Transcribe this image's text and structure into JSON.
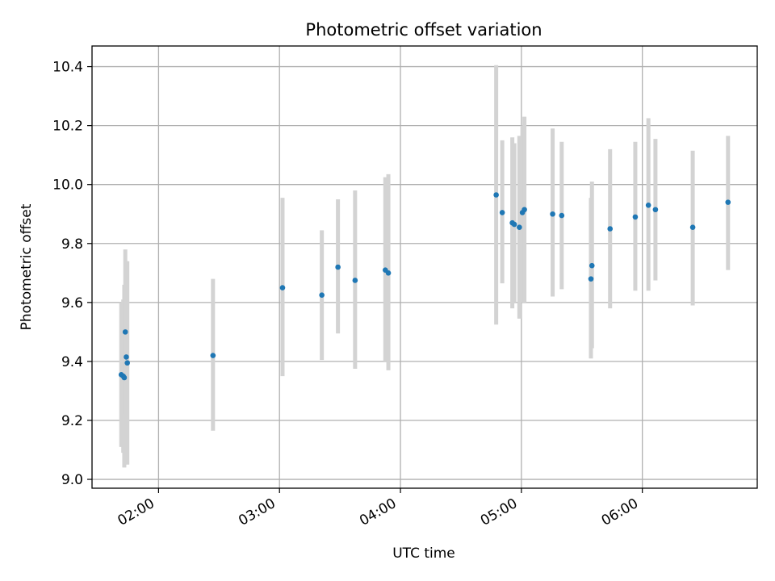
{
  "chart_data": {
    "type": "scatter",
    "title": "Photometric offset variation",
    "xlabel": "UTC time",
    "ylabel": "Photometric offset",
    "x_unit": "UTC time (HH:MM)",
    "xlim": [
      "01:27",
      "06:57"
    ],
    "ylim": [
      8.97,
      10.47
    ],
    "x_ticks": [
      "02:00",
      "03:00",
      "04:00",
      "05:00",
      "06:00"
    ],
    "y_ticks": [
      9.0,
      9.2,
      9.4,
      9.6,
      9.8,
      10.0,
      10.2,
      10.4
    ],
    "y_tick_labels": [
      "9.0",
      "9.2",
      "9.4",
      "9.6",
      "9.8",
      "10.0",
      "10.2",
      "10.4"
    ],
    "grid": true,
    "marker_color": "#1f77b4",
    "errorbar_color": "#d3d3d3",
    "series": [
      {
        "points": [
          {
            "x": "01:41:30",
            "y": 9.355,
            "low": 9.11,
            "high": 9.6
          },
          {
            "x": "01:42:30",
            "y": 9.35,
            "low": 9.09,
            "high": 9.61
          },
          {
            "x": "01:43:00",
            "y": 9.345,
            "low": 9.04,
            "high": 9.66
          },
          {
            "x": "01:43:30",
            "y": 9.5,
            "low": 9.22,
            "high": 9.78
          },
          {
            "x": "01:44:00",
            "y": 9.415,
            "low": 9.09,
            "high": 9.74
          },
          {
            "x": "01:44:30",
            "y": 9.395,
            "low": 9.05,
            "high": 9.74
          },
          {
            "x": "02:27:00",
            "y": 9.42,
            "low": 9.165,
            "high": 9.68
          },
          {
            "x": "03:01:30",
            "y": 9.65,
            "low": 9.35,
            "high": 9.955
          },
          {
            "x": "03:21:00",
            "y": 9.625,
            "low": 9.405,
            "high": 9.845
          },
          {
            "x": "03:29:00",
            "y": 9.72,
            "low": 9.495,
            "high": 9.95
          },
          {
            "x": "03:37:30",
            "y": 9.675,
            "low": 9.375,
            "high": 9.98
          },
          {
            "x": "03:52:30",
            "y": 9.71,
            "low": 9.4,
            "high": 10.025
          },
          {
            "x": "03:54:00",
            "y": 9.7,
            "low": 9.37,
            "high": 10.035
          },
          {
            "x": "04:47:30",
            "y": 9.965,
            "low": 9.525,
            "high": 10.405
          },
          {
            "x": "04:50:30",
            "y": 9.905,
            "low": 9.665,
            "high": 10.15
          },
          {
            "x": "04:55:30",
            "y": 9.87,
            "low": 9.58,
            "high": 10.16
          },
          {
            "x": "04:56:30",
            "y": 9.865,
            "low": 9.6,
            "high": 10.14
          },
          {
            "x": "04:59:00",
            "y": 9.855,
            "low": 9.545,
            "high": 10.165
          },
          {
            "x": "05:00:30",
            "y": 9.905,
            "low": 9.6,
            "high": 10.2
          },
          {
            "x": "05:01:30",
            "y": 9.915,
            "low": 9.6,
            "high": 10.23
          },
          {
            "x": "05:15:30",
            "y": 9.9,
            "low": 9.62,
            "high": 10.19
          },
          {
            "x": "05:20:00",
            "y": 9.895,
            "low": 9.645,
            "high": 10.145
          },
          {
            "x": "05:34:30",
            "y": 9.68,
            "low": 9.41,
            "high": 9.955
          },
          {
            "x": "05:35:00",
            "y": 9.725,
            "low": 9.445,
            "high": 10.01
          },
          {
            "x": "05:44:00",
            "y": 9.85,
            "low": 9.58,
            "high": 10.12
          },
          {
            "x": "05:56:30",
            "y": 9.89,
            "low": 9.64,
            "high": 10.145
          },
          {
            "x": "06:03:00",
            "y": 9.93,
            "low": 9.64,
            "high": 10.225
          },
          {
            "x": "06:06:30",
            "y": 9.915,
            "low": 9.675,
            "high": 10.155
          },
          {
            "x": "06:25:00",
            "y": 9.855,
            "low": 9.59,
            "high": 10.115
          },
          {
            "x": "06:42:30",
            "y": 9.94,
            "low": 9.71,
            "high": 10.165
          }
        ]
      }
    ]
  }
}
